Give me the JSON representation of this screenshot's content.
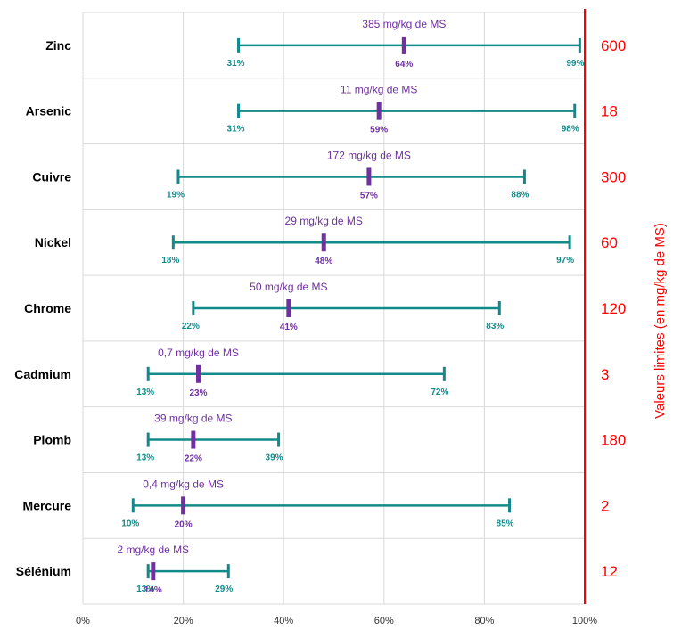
{
  "chart_data": {
    "type": "range",
    "categories": [
      "Zinc",
      "Arsenic",
      "Cuivre",
      "Nickel",
      "Chrome",
      "Cadmium",
      "Plomb",
      "Mercure",
      "Sélénium"
    ],
    "min_pct": [
      31,
      31,
      19,
      18,
      22,
      13,
      13,
      10,
      13
    ],
    "mean_pct": [
      64,
      59,
      57,
      48,
      41,
      23,
      22,
      20,
      14
    ],
    "max_pct": [
      99,
      98,
      88,
      97,
      83,
      72,
      39,
      85,
      29
    ],
    "mean_labels": [
      "385 mg/kg de MS",
      "11 mg/kg de MS",
      "172 mg/kg de MS",
      "29 mg/kg de MS",
      "50 mg/kg de MS",
      "0,7 mg/kg de MS",
      "39 mg/kg de MS",
      "0,4 mg/kg de MS",
      "2 mg/kg de MS"
    ],
    "min_labels": [
      "31%",
      "31%",
      "19%",
      "18%",
      "22%",
      "13%",
      "13%",
      "10%",
      "13%"
    ],
    "mean_pct_labels": [
      "64%",
      "59%",
      "57%",
      "48%",
      "41%",
      "23%",
      "22%",
      "20%",
      "14%"
    ],
    "max_labels": [
      "99%",
      "98%",
      "88%",
      "97%",
      "83%",
      "72%",
      "39%",
      "85%",
      "29%"
    ],
    "limit_values": [
      "600",
      "18",
      "300",
      "60",
      "120",
      "3",
      "180",
      "2",
      "12"
    ],
    "x_ticks": [
      "0%",
      "20%",
      "40%",
      "60%",
      "80%",
      "100%"
    ],
    "xlim": [
      0,
      100
    ],
    "y2label": "Valeurs limites (en mg/kg de MS)",
    "colors": {
      "range": "#138a8a",
      "mean": "#7030a0",
      "limit": "#ff0000",
      "grid": "#d9d9d9"
    },
    "grid": true
  }
}
